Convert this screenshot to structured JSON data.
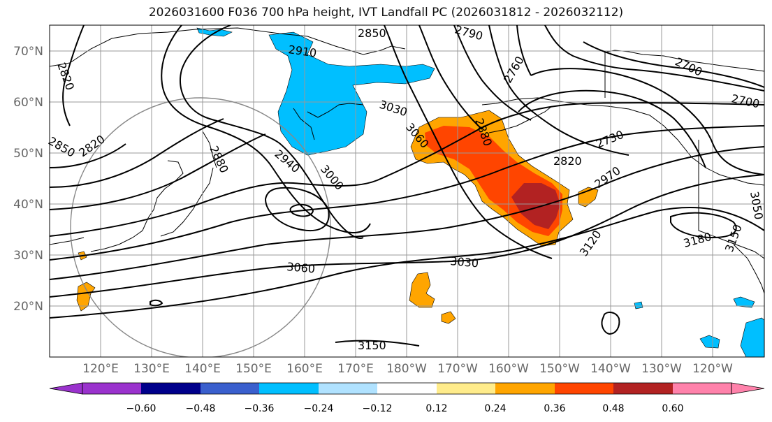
{
  "title": "2026031600 F036 700 hPa height, IVT Landfall PC (2026031812 - 2026032112)",
  "lat_labels": [
    "70°N",
    "60°N",
    "50°N",
    "40°N",
    "30°N",
    "20°N"
  ],
  "lon_labels": [
    "120°E",
    "130°E",
    "140°E",
    "150°E",
    "160°E",
    "170°E",
    "180°W",
    "170°W",
    "160°W",
    "150°W",
    "140°W",
    "130°W",
    "120°W"
  ],
  "contour_labels": [
    "2850",
    "2790",
    "2910",
    "2760",
    "2700",
    "2820",
    "2700",
    "3030",
    "3060",
    "2880",
    "2730",
    "2820",
    "2850",
    "2820",
    "2880",
    "2940",
    "3000",
    "2970",
    "3120",
    "3180",
    "3150",
    "3060",
    "3030",
    "3150",
    "3050"
  ],
  "colorbar": {
    "ticks": [
      "−0.60",
      "−0.48",
      "−0.36",
      "−0.24",
      "−0.12",
      "0.12",
      "0.24",
      "0.36",
      "0.48",
      "0.60"
    ],
    "colors": [
      "#9a32cd",
      "#00008b",
      "#3a5fcd",
      "#00bfff",
      "#b0e2ff",
      "#ffffff",
      "#ffec8b",
      "#ffa500",
      "#ff4500",
      "#b22222",
      "#ff82ab"
    ]
  }
}
